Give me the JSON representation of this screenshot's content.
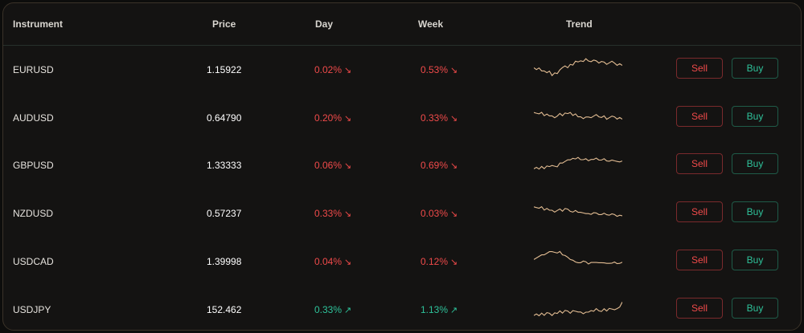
{
  "table": {
    "headers": {
      "instrument": "Instrument",
      "price": "Price",
      "day": "Day",
      "week": "Week",
      "trend": "Trend"
    },
    "sell_label": "Sell",
    "buy_label": "Buy",
    "trend_color": "#e2bc92",
    "down_color": "#ef4a4a",
    "up_color": "#2ec29a",
    "rows": [
      {
        "instrument": "EURUSD",
        "price": "1.15922",
        "day": "0.02%",
        "day_dir": "down",
        "day_arrow": "↘",
        "week": "0.53%",
        "week_dir": "down",
        "week_arrow": "↘",
        "trend": [
          0.55,
          0.45,
          0.5,
          0.35,
          0.4,
          0.3,
          0.35,
          0.2,
          0.3,
          0.25,
          0.4,
          0.55,
          0.6,
          0.5,
          0.7,
          0.65,
          0.8,
          0.75,
          0.85,
          0.8,
          0.9,
          0.85,
          0.8,
          0.85,
          0.8,
          0.75,
          0.8,
          0.75,
          0.7,
          0.75,
          0.8,
          0.7,
          0.65,
          0.7,
          0.6
        ]
      },
      {
        "instrument": "AUDUSD",
        "price": "0.64790",
        "day": "0.20%",
        "day_dir": "down",
        "day_arrow": "↘",
        "week": "0.33%",
        "week_dir": "down",
        "week_arrow": "↘",
        "trend": [
          0.7,
          0.65,
          0.6,
          0.65,
          0.55,
          0.6,
          0.5,
          0.55,
          0.45,
          0.5,
          0.6,
          0.55,
          0.65,
          0.6,
          0.7,
          0.55,
          0.6,
          0.45,
          0.5,
          0.4,
          0.45,
          0.5,
          0.45,
          0.5,
          0.55,
          0.5,
          0.45,
          0.5,
          0.4,
          0.45,
          0.5,
          0.45,
          0.4,
          0.45,
          0.35
        ]
      },
      {
        "instrument": "GBPUSD",
        "price": "1.33333",
        "day": "0.06%",
        "day_dir": "down",
        "day_arrow": "↘",
        "week": "0.69%",
        "week_dir": "down",
        "week_arrow": "↘",
        "trend": [
          0.3,
          0.35,
          0.25,
          0.35,
          0.3,
          0.4,
          0.35,
          0.45,
          0.4,
          0.35,
          0.5,
          0.55,
          0.6,
          0.65,
          0.7,
          0.75,
          0.7,
          0.75,
          0.7,
          0.68,
          0.7,
          0.66,
          0.7,
          0.68,
          0.72,
          0.68,
          0.66,
          0.7,
          0.65,
          0.62,
          0.65,
          0.6,
          0.62,
          0.58,
          0.6
        ]
      },
      {
        "instrument": "NZDUSD",
        "price": "0.57237",
        "day": "0.33%",
        "day_dir": "down",
        "day_arrow": "↘",
        "week": "0.03%",
        "week_dir": "down",
        "week_arrow": "↘",
        "trend": [
          0.75,
          0.7,
          0.65,
          0.7,
          0.6,
          0.65,
          0.55,
          0.6,
          0.5,
          0.55,
          0.6,
          0.55,
          0.65,
          0.6,
          0.55,
          0.5,
          0.55,
          0.45,
          0.5,
          0.45,
          0.4,
          0.45,
          0.4,
          0.45,
          0.42,
          0.4,
          0.38,
          0.42,
          0.4,
          0.36,
          0.4,
          0.35,
          0.32,
          0.35,
          0.3
        ]
      },
      {
        "instrument": "USDCAD",
        "price": "1.39998",
        "day": "0.04%",
        "day_dir": "down",
        "day_arrow": "↘",
        "week": "0.12%",
        "week_dir": "down",
        "week_arrow": "↘",
        "trend": [
          0.55,
          0.6,
          0.65,
          0.7,
          0.75,
          0.8,
          0.85,
          0.9,
          0.85,
          0.8,
          0.85,
          0.75,
          0.7,
          0.6,
          0.55,
          0.5,
          0.4,
          0.35,
          0.4,
          0.45,
          0.4,
          0.35,
          0.4,
          0.38,
          0.36,
          0.4,
          0.38,
          0.35,
          0.38,
          0.36,
          0.35,
          0.38,
          0.36,
          0.35,
          0.38
        ]
      },
      {
        "instrument": "USDJPY",
        "price": "152.462",
        "day": "0.33%",
        "day_dir": "up",
        "day_arrow": "↗",
        "week": "1.13%",
        "week_dir": "up",
        "week_arrow": "↗",
        "trend": [
          0.2,
          0.25,
          0.15,
          0.25,
          0.2,
          0.3,
          0.25,
          0.2,
          0.3,
          0.25,
          0.35,
          0.3,
          0.4,
          0.35,
          0.3,
          0.4,
          0.35,
          0.3,
          0.35,
          0.25,
          0.3,
          0.35,
          0.4,
          0.35,
          0.45,
          0.4,
          0.35,
          0.45,
          0.4,
          0.5,
          0.45,
          0.4,
          0.5,
          0.55,
          0.75
        ]
      }
    ]
  }
}
